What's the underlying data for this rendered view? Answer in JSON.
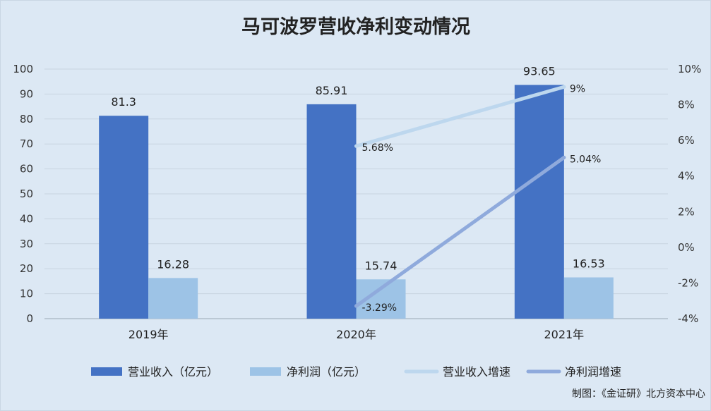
{
  "chart_data": {
    "type": "bar",
    "title": "马可波罗营收净利变动情况",
    "categories": [
      "2019年",
      "2020年",
      "2021年"
    ],
    "ylim": [
      0,
      100
    ],
    "yticks": [
      "0",
      "10",
      "20",
      "30",
      "40",
      "50",
      "60",
      "70",
      "80",
      "90",
      "100"
    ],
    "y2lim": [
      -4,
      10
    ],
    "y2ticks": [
      "-4%",
      "-2%",
      "0%",
      "2%",
      "4%",
      "6%",
      "8%",
      "10%"
    ],
    "series": [
      {
        "name": "营业收入（亿元）",
        "kind": "bar",
        "axis": "left",
        "color": "#4472c4",
        "values": [
          81.3,
          85.91,
          93.65
        ],
        "labels": [
          "81.3",
          "85.91",
          "93.65"
        ]
      },
      {
        "name": "净利润（亿元）",
        "kind": "bar",
        "axis": "left",
        "color": "#9dc3e6",
        "values": [
          16.28,
          15.74,
          16.53
        ],
        "labels": [
          "16.28",
          "15.74",
          "16.53"
        ]
      },
      {
        "name": "营业收入增速",
        "kind": "line",
        "axis": "right",
        "color": "#bdd7ee",
        "values": [
          null,
          5.68,
          9
        ],
        "labels": [
          "",
          "5.68%",
          "9%"
        ]
      },
      {
        "name": "净利润增速",
        "kind": "line",
        "axis": "right",
        "color": "#8faadc",
        "values": [
          null,
          -3.29,
          5.04
        ],
        "labels": [
          "",
          "-3.29%",
          "5.04%"
        ]
      }
    ],
    "grid": true,
    "legend": "bottom"
  },
  "credit": "制图：《金证研》北方资本中心"
}
